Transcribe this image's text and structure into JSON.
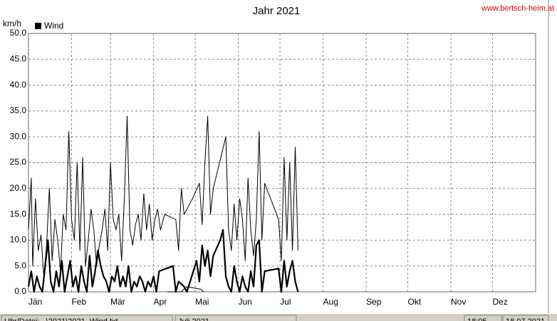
{
  "chart_data": {
    "type": "line",
    "title": "Jahr 2021",
    "site": "www.bertsch-heim.at",
    "y_label": "km/h",
    "xlim": [
      0,
      365
    ],
    "xticks": [
      {
        "value": 0,
        "label": "Jän"
      },
      {
        "value": 31,
        "label": "Feb"
      },
      {
        "value": 59,
        "label": "Mär"
      },
      {
        "value": 90,
        "label": "Apr"
      },
      {
        "value": 120,
        "label": "Mai"
      },
      {
        "value": 151,
        "label": "Jun"
      },
      {
        "value": 181,
        "label": "Jul"
      },
      {
        "value": 212,
        "label": "Aug"
      },
      {
        "value": 243,
        "label": "Sep"
      },
      {
        "value": 273,
        "label": "Okt"
      },
      {
        "value": 304,
        "label": "Nov"
      },
      {
        "value": 334,
        "label": "Dez"
      }
    ],
    "ylim": [
      0,
      50
    ],
    "yticks": [
      {
        "value": 0,
        "label": "0.0"
      },
      {
        "value": 5,
        "label": "5.0"
      },
      {
        "value": 10,
        "label": "10.0"
      },
      {
        "value": 15,
        "label": "15.0"
      },
      {
        "value": 20,
        "label": "20.0"
      },
      {
        "value": 25,
        "label": "25.0"
      },
      {
        "value": 30,
        "label": "30.0"
      },
      {
        "value": 35,
        "label": "35.0"
      },
      {
        "value": 40,
        "label": "40.0"
      },
      {
        "value": 45,
        "label": "45.0"
      },
      {
        "value": 50,
        "label": "50.0"
      }
    ],
    "grid": true,
    "series": [
      {
        "color": "#000000",
        "x": [
          0,
          2,
          3,
          5,
          7,
          9,
          11,
          13,
          15,
          17,
          19,
          21,
          23,
          25,
          27,
          29,
          31,
          33,
          35,
          37,
          39,
          41,
          43,
          45,
          47,
          49,
          51,
          53,
          55,
          57,
          59,
          61,
          63,
          65,
          67,
          69,
          71,
          73,
          75,
          77,
          79,
          81,
          83,
          85,
          87,
          89,
          91,
          93,
          95,
          98,
          106,
          108,
          110,
          112,
          118,
          123,
          125,
          127,
          129,
          131,
          133,
          142,
          144,
          146,
          148,
          150,
          152,
          154,
          156,
          158,
          160,
          162,
          164,
          166,
          168,
          170,
          180,
          182,
          184,
          186,
          188,
          190,
          192,
          194
        ],
        "values": [
          12,
          22,
          5,
          18,
          8,
          11,
          3,
          9,
          20,
          6,
          14,
          10,
          4,
          15,
          12,
          31,
          14,
          10,
          25,
          8,
          26,
          5,
          10,
          16,
          12,
          5,
          9,
          12,
          16,
          8,
          25,
          14,
          12,
          15,
          6,
          18,
          34,
          12,
          9,
          13,
          15,
          10,
          19,
          12,
          17,
          10,
          14,
          16,
          12,
          15,
          14,
          8,
          20,
          15,
          18,
          21,
          13,
          25,
          34,
          15,
          20,
          30,
          12,
          8,
          17,
          10,
          18,
          14,
          6,
          22,
          12,
          7,
          14,
          31,
          10,
          21,
          14,
          6,
          26,
          10,
          25,
          8,
          28,
          8
        ]
      },
      {
        "name": "Wind",
        "color": "#000000",
        "x": [
          0,
          2,
          4,
          6,
          8,
          10,
          12,
          14,
          16,
          18,
          20,
          22,
          24,
          26,
          28,
          30,
          32,
          34,
          36,
          38,
          40,
          42,
          44,
          46,
          48,
          50,
          52,
          54,
          56,
          58,
          60,
          62,
          64,
          66,
          68,
          70,
          72,
          74,
          76,
          78,
          80,
          82,
          84,
          86,
          88,
          90,
          92,
          94,
          104,
          106,
          108,
          112,
          114,
          121,
          123,
          125,
          127,
          129,
          131,
          133,
          138,
          140,
          142,
          144,
          146,
          148,
          150,
          152,
          154,
          156,
          158,
          160,
          162,
          164,
          166,
          168,
          170,
          180,
          182,
          184,
          186,
          188,
          190,
          192,
          194
        ],
        "values": [
          1,
          4,
          0,
          3,
          1,
          0,
          5,
          10,
          2,
          0,
          4,
          1,
          6,
          0,
          3,
          6,
          1,
          3,
          0,
          5,
          2,
          0,
          7,
          1,
          4,
          8,
          5,
          3,
          2,
          0,
          3,
          2,
          5,
          1,
          3,
          1,
          5,
          0,
          2,
          1,
          3,
          2,
          0,
          2,
          1,
          3,
          0,
          4,
          5,
          0,
          2,
          1,
          0,
          6,
          2,
          9,
          5,
          8,
          3,
          7,
          10,
          12,
          3,
          1,
          0,
          5,
          2,
          0,
          3,
          1,
          0,
          4,
          1,
          9,
          10,
          0,
          4,
          4.5,
          0,
          6,
          1,
          4,
          6,
          2,
          0
        ]
      },
      {
        "color": "#000000",
        "x": [
          100,
          110,
          114,
          124,
          126
        ],
        "values": [
          0,
          0,
          1,
          0.5,
          0
        ]
      }
    ],
    "status": [
      "Uhr/Datei: ..\\2021\\2021_Wind.txt",
      "Juli 2021",
      "18:05",
      "18.07.2021"
    ]
  }
}
